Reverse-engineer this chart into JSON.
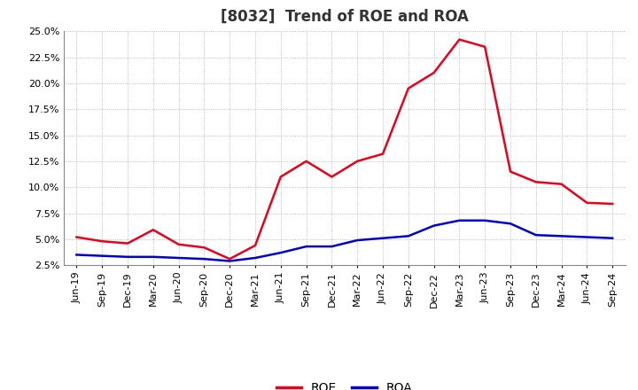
{
  "title": "[8032]  Trend of ROE and ROA",
  "x_labels": [
    "Jun-19",
    "Sep-19",
    "Dec-19",
    "Mar-20",
    "Jun-20",
    "Sep-20",
    "Dec-20",
    "Mar-21",
    "Jun-21",
    "Sep-21",
    "Dec-21",
    "Mar-22",
    "Jun-22",
    "Sep-22",
    "Dec-22",
    "Mar-23",
    "Jun-23",
    "Sep-23",
    "Dec-23",
    "Mar-24",
    "Jun-24",
    "Sep-24"
  ],
  "roe": [
    5.2,
    4.8,
    4.6,
    5.9,
    4.5,
    4.2,
    3.1,
    4.4,
    11.0,
    12.5,
    11.0,
    12.5,
    13.2,
    19.5,
    21.0,
    24.2,
    23.5,
    11.5,
    10.5,
    10.3,
    8.5,
    8.4
  ],
  "roa": [
    3.5,
    3.4,
    3.3,
    3.3,
    3.2,
    3.1,
    2.9,
    3.2,
    3.7,
    4.3,
    4.3,
    4.9,
    5.1,
    5.3,
    6.3,
    6.8,
    6.8,
    6.5,
    5.4,
    5.3,
    5.2,
    5.1
  ],
  "roe_color": "#e8001c",
  "roa_color": "#0000cc",
  "ylim_min": 2.5,
  "ylim_max": 25.0,
  "yticks": [
    2.5,
    5.0,
    7.5,
    10.0,
    12.5,
    15.0,
    17.5,
    20.0,
    22.5,
    25.0
  ],
  "background_color": "#ffffff",
  "grid_color": "#aaaaaa",
  "line_width": 1.8,
  "title_fontsize": 12,
  "tick_fontsize": 8
}
